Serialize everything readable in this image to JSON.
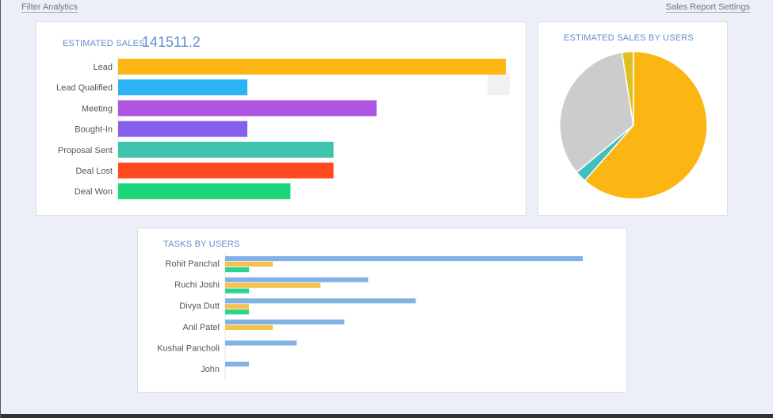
{
  "top": {
    "filter_label": "Filter Analytics",
    "settings_label": "Sales Report Settings"
  },
  "sales_card": {
    "title": "ESTIMATED SALES",
    "total": "141511.2"
  },
  "pie_card": {
    "title": "ESTIMATED SALES BY USERS"
  },
  "tasks_card": {
    "title": "TASKS BY USERS"
  },
  "chart_data": [
    {
      "type": "bar",
      "orientation": "horizontal",
      "title": "ESTIMATED SALES",
      "categories": [
        "Lead",
        "Lead Qualified",
        "Meeting",
        "Bought-In",
        "Proposal Sent",
        "Deal Lost",
        "Deal Won"
      ],
      "values": [
        9,
        3,
        6,
        3,
        5,
        5,
        4
      ],
      "colors": [
        "#fbb614",
        "#2db3f5",
        "#ad55e0",
        "#8560eb",
        "#40c4ad",
        "#ff4b1f",
        "#1ed67a"
      ],
      "xlim": [
        0,
        9
      ],
      "grid": false
    },
    {
      "type": "pie",
      "title": "ESTIMATED SALES BY USERS",
      "values": [
        61.5,
        2.5,
        33.5,
        2.5
      ],
      "colors": [
        "#fbb614",
        "#3fbfbf",
        "#cccccc",
        "#e0c020"
      ]
    },
    {
      "type": "bar",
      "orientation": "horizontal",
      "title": "TASKS BY USERS",
      "categories": [
        "Rohit Panchal",
        "Ruchi Joshi",
        "Divya Dutt",
        "Anil Patel",
        "Kushal Pancholi",
        "John"
      ],
      "series": [
        {
          "values": [
            15,
            6,
            8,
            5,
            3,
            1
          ],
          "color": "#82b1e6"
        },
        {
          "values": [
            2,
            4,
            1,
            2,
            0,
            0
          ],
          "color": "#f6c24b"
        },
        {
          "values": [
            1,
            1,
            1,
            0,
            0,
            0
          ],
          "color": "#2ed48e"
        }
      ],
      "xlim": [
        0,
        15
      ],
      "grid": false
    }
  ]
}
